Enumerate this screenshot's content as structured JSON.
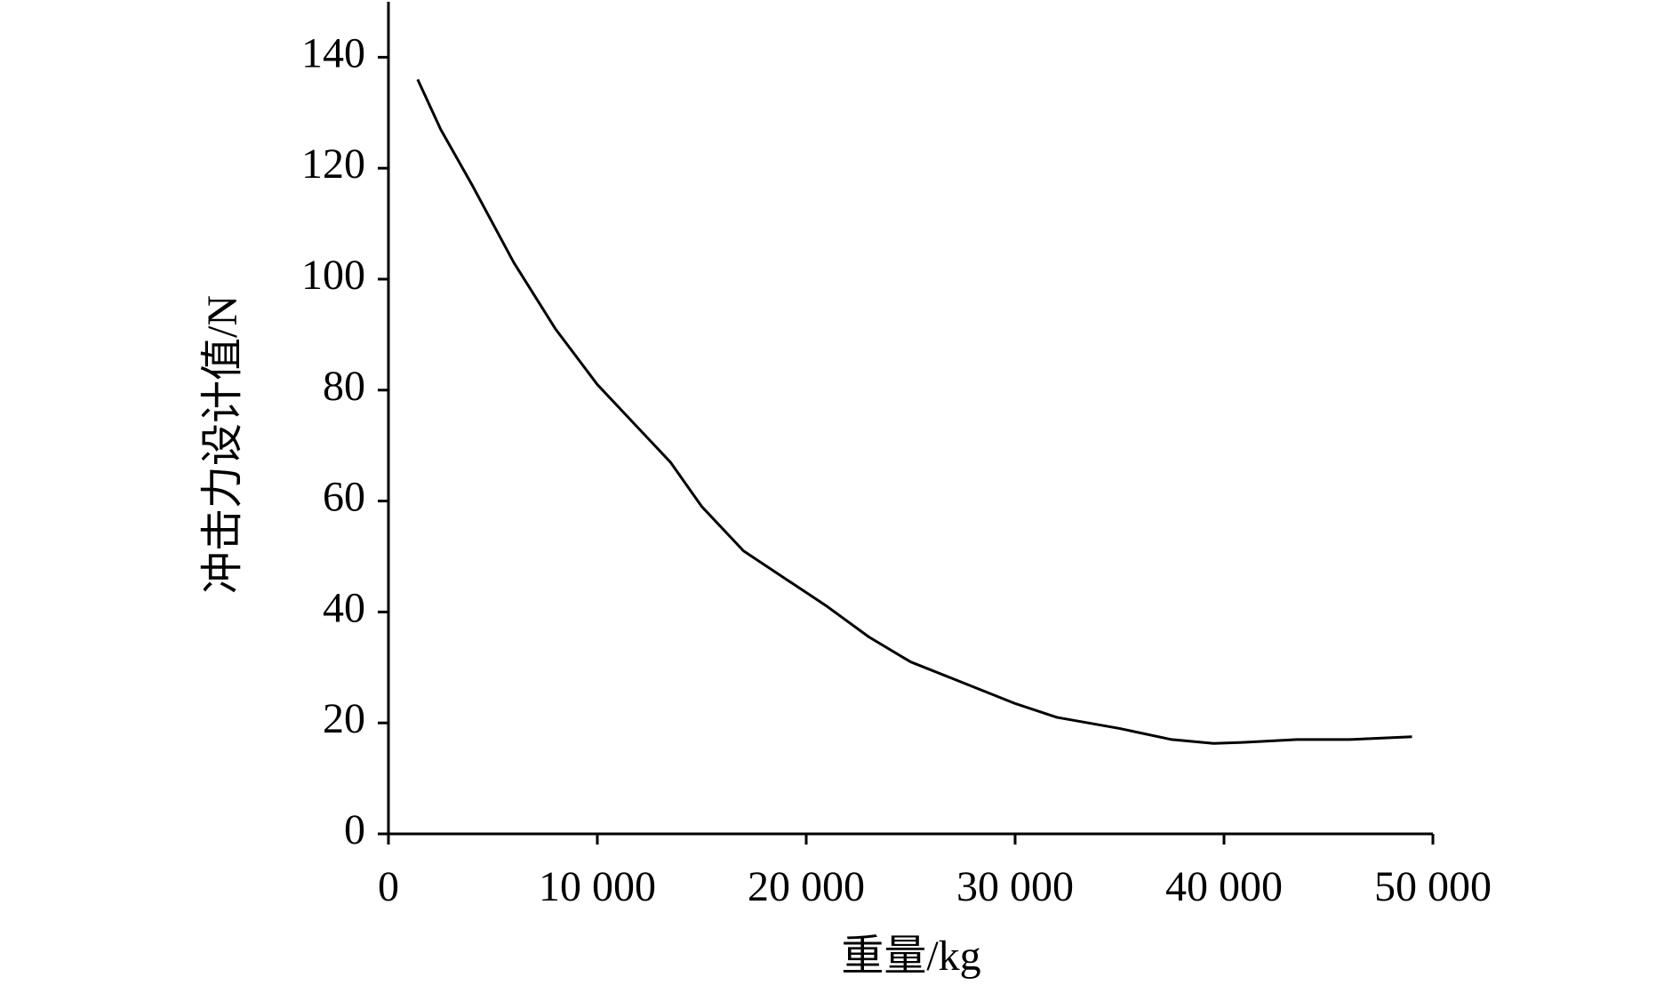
{
  "chart_data": {
    "type": "line",
    "xlabel": "重量/kg",
    "ylabel": "冲击力设计值/N",
    "x": [
      1400,
      2500,
      4000,
      6000,
      8000,
      10000,
      12000,
      13500,
      15000,
      17000,
      19000,
      21000,
      23000,
      25000,
      27000,
      30000,
      32000,
      35000,
      37500,
      39500,
      41000,
      43500,
      46000,
      49000
    ],
    "series": [
      {
        "color": "#000000",
        "values": [
          136,
          127,
          117,
          103,
          91,
          81,
          73,
          67,
          59,
          51,
          46,
          41,
          35.5,
          31,
          28,
          23.5,
          21,
          19,
          17,
          16.3,
          16.5,
          17,
          17,
          17.5
        ]
      }
    ],
    "xlim": [
      0,
      50000
    ],
    "ylim": [
      0,
      150
    ],
    "xticks": [
      0,
      {
        "value": 10000,
        "label": "10 000"
      },
      {
        "value": 20000,
        "label": "20 000"
      },
      {
        "value": 30000,
        "label": "30 000"
      },
      {
        "value": 40000,
        "label": "40 000"
      },
      {
        "value": 50000,
        "label": "50 000"
      }
    ],
    "yticks": [
      0,
      20,
      40,
      60,
      80,
      100,
      120,
      140
    ]
  }
}
